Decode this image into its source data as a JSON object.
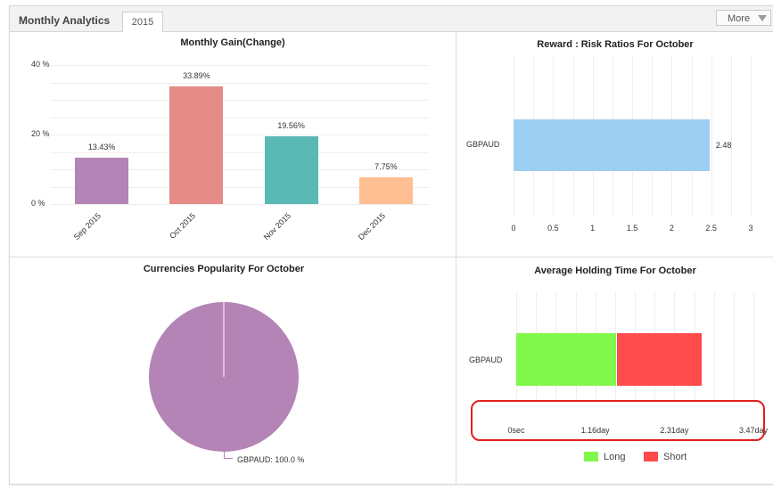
{
  "header": {
    "title": "Monthly Analytics",
    "tab_label": "2015",
    "more_label": "More"
  },
  "colors": {
    "gain_bars": [
      "#b384b5",
      "#e48a87",
      "#5ab9b4",
      "#ffbf93"
    ],
    "ratio_bar": "#9dcff3",
    "pie": "#b384b5",
    "long": "#80f74a",
    "short": "#ff4b4b",
    "highlight": "#e02020"
  },
  "chart_data": [
    {
      "type": "bar",
      "title": "Monthly Gain(Change)",
      "categories": [
        "Sep 2015",
        "Oct 2015",
        "Nov 2015",
        "Dec 2015"
      ],
      "values": [
        13.43,
        33.89,
        19.56,
        7.75
      ],
      "value_labels": [
        "13.43%",
        "33.89%",
        "19.56%",
        "7.75%"
      ],
      "ytick_labels": [
        "40 %",
        "20 %",
        "0 %"
      ],
      "ylim": [
        0,
        40
      ]
    },
    {
      "type": "bar",
      "orientation": "horizontal",
      "title": "Reward : Risk Ratios For October",
      "categories": [
        "GBPAUD"
      ],
      "values": [
        2.48
      ],
      "value_labels": [
        "2.48"
      ],
      "xtick_labels": [
        "0",
        "0.5",
        "1",
        "1.5",
        "2",
        "2.5",
        "3"
      ],
      "xlim": [
        0,
        3
      ]
    },
    {
      "type": "pie",
      "title": "Currencies Popularity For October",
      "labels": [
        "GBPAUD"
      ],
      "values": [
        100.0
      ],
      "slice_label": "GBPAUD: 100.0 %"
    },
    {
      "type": "bar",
      "orientation": "horizontal",
      "stacked": true,
      "title": "Average Holding Time For October",
      "categories": [
        "GBPAUD"
      ],
      "series": [
        {
          "name": "Long",
          "values": [
            1.47
          ]
        },
        {
          "name": "Short",
          "values": [
            1.25
          ]
        }
      ],
      "xtick_labels": [
        "0sec",
        "1.16day",
        "2.31day",
        "3.47day"
      ],
      "xlim": [
        0,
        3.47
      ]
    }
  ]
}
